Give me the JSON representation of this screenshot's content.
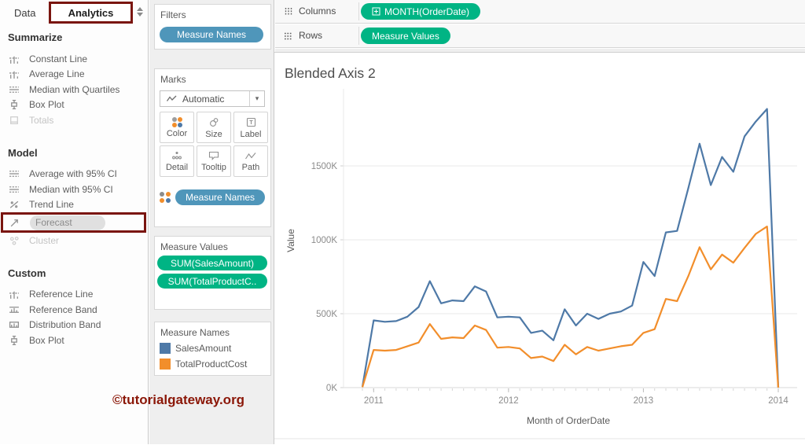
{
  "pane": {
    "tabs": {
      "data_label": "Data",
      "analytics_label": "Analytics"
    },
    "sections": [
      {
        "title": "Summarize",
        "items": [
          {
            "label": "Constant Line"
          },
          {
            "label": "Average Line"
          },
          {
            "label": "Median with Quartiles"
          },
          {
            "label": "Box Plot"
          },
          {
            "label": "Totals",
            "disabled": true
          }
        ]
      },
      {
        "title": "Model",
        "items": [
          {
            "label": "Average with 95% CI"
          },
          {
            "label": "Median with 95% CI"
          },
          {
            "label": "Trend Line"
          },
          {
            "label": "Forecast",
            "highlighted": true
          },
          {
            "label": "Cluster",
            "disabled": true
          }
        ]
      },
      {
        "title": "Custom",
        "items": [
          {
            "label": "Reference Line"
          },
          {
            "label": "Reference Band"
          },
          {
            "label": "Distribution Band"
          },
          {
            "label": "Box Plot"
          }
        ]
      }
    ]
  },
  "filters": {
    "title": "Filters",
    "pill": "Measure Names"
  },
  "marks": {
    "title": "Marks",
    "type_selector": "Automatic",
    "buttons": [
      {
        "label": "Color"
      },
      {
        "label": "Size"
      },
      {
        "label": "Label"
      },
      {
        "label": "Detail"
      },
      {
        "label": "Tooltip"
      },
      {
        "label": "Path"
      }
    ],
    "pill": "Measure Names"
  },
  "measure_values": {
    "title": "Measure Values",
    "pills": [
      "SUM(SalesAmount)",
      "SUM(TotalProductC.."
    ]
  },
  "legend": {
    "title": "Measure Names",
    "entries": [
      {
        "label": "SalesAmount",
        "color": "#4e79a7"
      },
      {
        "label": "TotalProductCost",
        "color": "#f28e2b"
      }
    ]
  },
  "watermark": "©tutorialgateway.org",
  "shelves": {
    "columns_label": "Columns",
    "columns_pill": "MONTH(OrderDate)",
    "rows_label": "Rows",
    "rows_pill": "Measure Values"
  },
  "colors": {
    "pill_green": "#00b484",
    "pill_blue": "#4f96ba",
    "highlight_red": "#7a150f",
    "series_blue": "#4e79a7",
    "series_orange": "#f28e2b"
  },
  "chart_data": {
    "type": "line",
    "title": "Blended Axis 2",
    "xlabel": "Month of OrderDate",
    "ylabel": "Value",
    "grid": "horizontal",
    "ylim_k": [
      0,
      1900
    ],
    "x_monthly": [
      "Dec 2010",
      "Jan 2011",
      "Feb 2011",
      "Mar 2011",
      "Apr 2011",
      "May 2011",
      "Jun 2011",
      "Jul 2011",
      "Aug 2011",
      "Sep 2011",
      "Oct 2011",
      "Nov 2011",
      "Dec 2011",
      "Jan 2012",
      "Feb 2012",
      "Mar 2012",
      "Apr 2012",
      "May 2012",
      "Jun 2012",
      "Jul 2012",
      "Aug 2012",
      "Sep 2012",
      "Oct 2012",
      "Nov 2012",
      "Dec 2012",
      "Jan 2013",
      "Feb 2013",
      "Mar 2013",
      "Apr 2013",
      "May 2013",
      "Jun 2013",
      "Jul 2013",
      "Aug 2013",
      "Sep 2013",
      "Oct 2013",
      "Nov 2013",
      "Dec 2013",
      "Jan 2014"
    ],
    "series": [
      {
        "name": "SalesAmount",
        "color": "#4e79a7",
        "values_k": [
          5,
          455,
          445,
          450,
          480,
          545,
          720,
          570,
          590,
          585,
          685,
          650,
          475,
          480,
          475,
          370,
          385,
          320,
          530,
          420,
          500,
          465,
          500,
          515,
          555,
          850,
          755,
          1050,
          1060,
          1350,
          1650,
          1370,
          1560,
          1460,
          1700,
          1800,
          1885,
          0
        ]
      },
      {
        "name": "TotalProductCost",
        "color": "#f28e2b",
        "values_k": [
          3,
          255,
          250,
          255,
          280,
          305,
          430,
          330,
          340,
          335,
          420,
          390,
          270,
          275,
          265,
          200,
          210,
          180,
          290,
          225,
          275,
          250,
          265,
          280,
          290,
          370,
          395,
          600,
          585,
          755,
          950,
          800,
          900,
          845,
          945,
          1040,
          1090,
          0
        ]
      }
    ],
    "yticks": [
      {
        "value_k": 0,
        "label": "0K"
      },
      {
        "value_k": 500,
        "label": "500K"
      },
      {
        "value_k": 1000,
        "label": "1000K"
      },
      {
        "value_k": 1500,
        "label": "1500K"
      }
    ],
    "xticks": [
      {
        "month_index": 1,
        "label": "2011"
      },
      {
        "month_index": 13,
        "label": "2012"
      },
      {
        "month_index": 25,
        "label": "2013"
      },
      {
        "month_index": 37,
        "label": "2014"
      }
    ],
    "legend_position": "left-panel"
  }
}
